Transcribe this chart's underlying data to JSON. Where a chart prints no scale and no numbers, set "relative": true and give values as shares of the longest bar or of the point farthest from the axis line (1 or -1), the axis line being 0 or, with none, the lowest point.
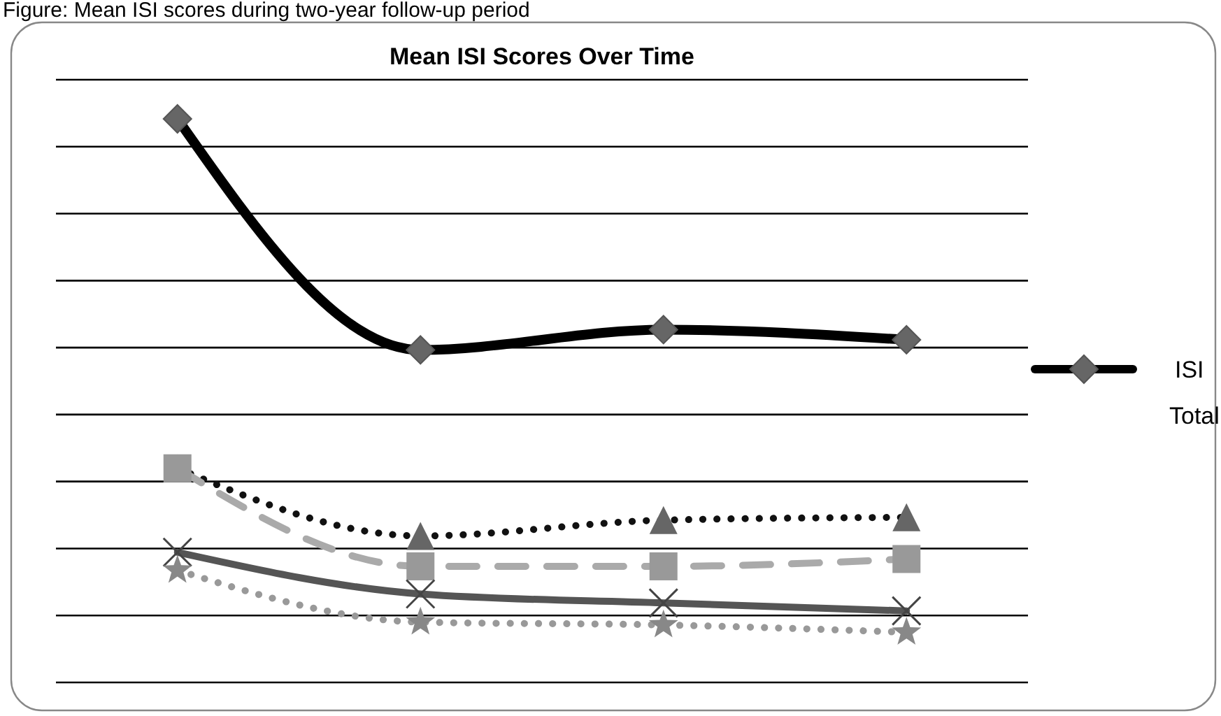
{
  "chart_data": {
    "type": "line",
    "title": "Mean ISI Scores Over Time",
    "annotations": [
      "Figure: Mean ISI scores during two-year follow-up period"
    ],
    "relative": true,
    "grid": "y",
    "legend": "right",
    "categories": [
      null,
      null,
      null,
      null
    ],
    "series": [
      {
        "name": "ISI Total",
        "color": "#000000",
        "marker": "diamond",
        "line_style": "solid",
        "values": [
          1,
          0.59,
          0.626,
          0.608
        ]
      },
      {
        "color": "#111111",
        "marker": "triangle",
        "line_style": "dotted",
        "values": [
          0.38,
          0.26,
          0.288,
          0.293
        ]
      },
      {
        "color": "#aaaaaa",
        "marker": "square",
        "line_style": "dashed",
        "values": [
          0.38,
          0.206,
          0.206,
          0.219
        ]
      },
      {
        "color": "#555555",
        "marker": "cross",
        "line_style": "solid",
        "values": [
          0.231,
          0.157,
          0.141,
          0.127
        ]
      },
      {
        "color": "#999999",
        "marker": "star",
        "line_style": "dotted",
        "values": [
          0.199,
          0.107,
          0.102,
          0.089
        ]
      }
    ]
  }
}
